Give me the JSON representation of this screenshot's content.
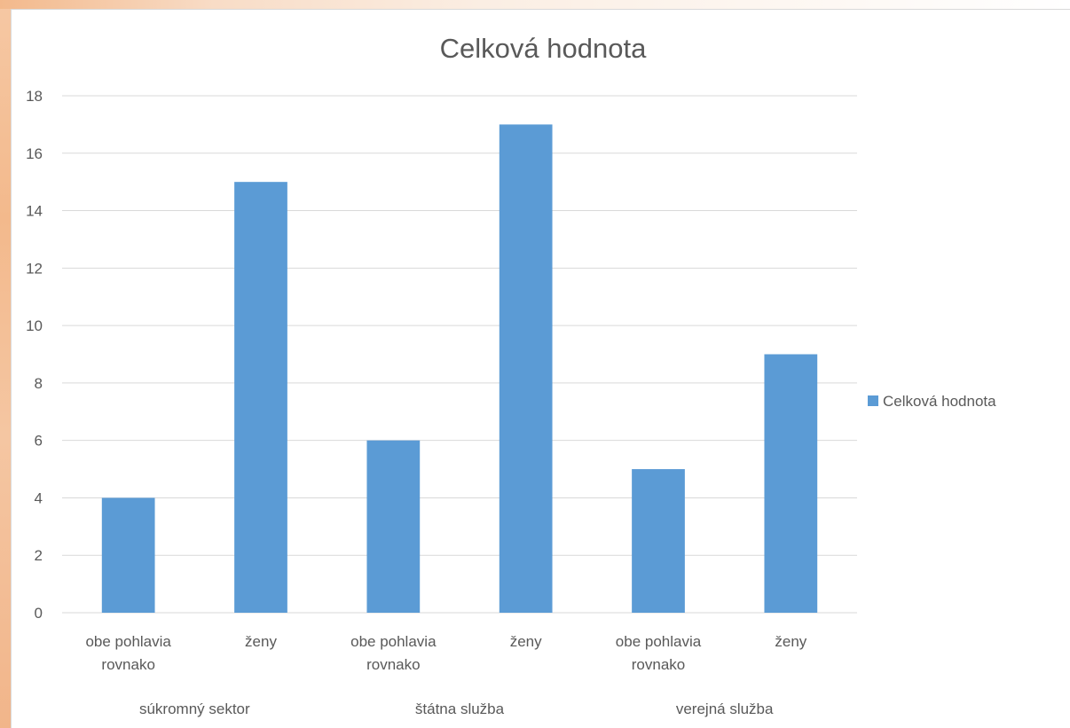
{
  "chart_data": {
    "type": "bar",
    "title": "Celková hodnota",
    "categories": [
      {
        "label": [
          "obe pohlavia",
          "rovnako"
        ],
        "group": "súkromný sektor"
      },
      {
        "label": [
          "ženy"
        ],
        "group": "súkromný sektor"
      },
      {
        "label": [
          "obe pohlavia",
          "rovnako"
        ],
        "group": "štátna služba"
      },
      {
        "label": [
          "ženy"
        ],
        "group": "štátna služba"
      },
      {
        "label": [
          "obe pohlavia",
          "rovnako"
        ],
        "group": "verejná služba"
      },
      {
        "label": [
          "ženy"
        ],
        "group": "verejná služba"
      }
    ],
    "groups": [
      "súkromný sektor",
      "štátna služba",
      "verejná služba"
    ],
    "series": [
      {
        "name": "Celková hodnota",
        "values": [
          4,
          15,
          6,
          17,
          5,
          9
        ],
        "color": "#5b9bd5"
      }
    ],
    "ylim": [
      0,
      18
    ],
    "yticks": [
      0,
      2,
      4,
      6,
      8,
      10,
      12,
      14,
      16,
      18
    ],
    "grid": true,
    "legend_position": "right",
    "xlabel": "",
    "ylabel": ""
  }
}
